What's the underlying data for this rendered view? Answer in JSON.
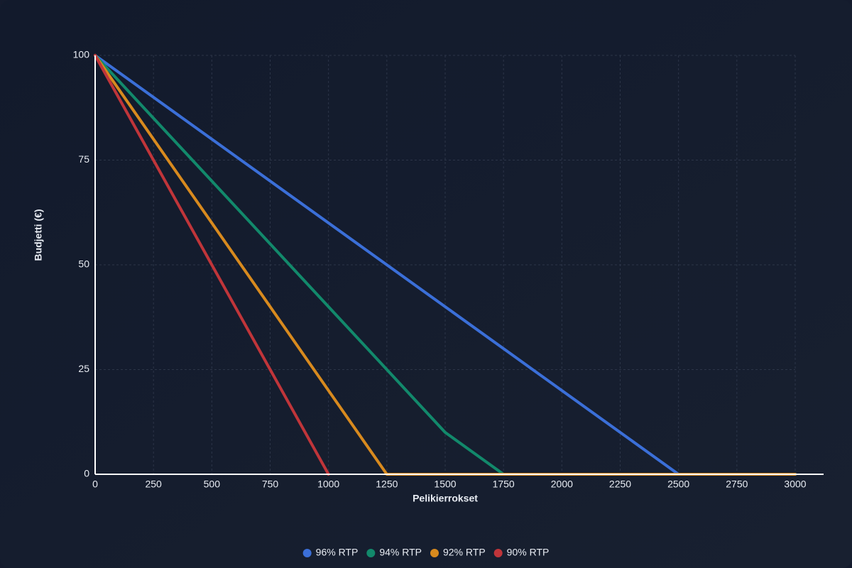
{
  "chart_data": {
    "type": "line",
    "x": [
      0,
      250,
      500,
      750,
      1000,
      1250,
      1500,
      1750,
      2000,
      2250,
      2500,
      2750,
      3000
    ],
    "series": [
      {
        "name": "96% RTP",
        "color": "#3b6fd8",
        "values": [
          100,
          90,
          80,
          70,
          60,
          50,
          40,
          30,
          20,
          10,
          0,
          0,
          0
        ]
      },
      {
        "name": "94% RTP",
        "color": "#12896b",
        "values": [
          100,
          85,
          70,
          55,
          40,
          25,
          10,
          0,
          0,
          0,
          0,
          0,
          0
        ]
      },
      {
        "name": "92% RTP",
        "color": "#d88a1e",
        "values": [
          100,
          80,
          60,
          40,
          20,
          0,
          0,
          0,
          0,
          0,
          0,
          0,
          0
        ]
      },
      {
        "name": "90% RTP",
        "color": "#c0353a",
        "values": [
          100,
          75,
          50,
          25,
          0,
          null,
          null,
          null,
          null,
          null,
          null,
          null,
          null
        ]
      }
    ],
    "xlabel": "Pelikierrokset",
    "ylabel": "Budjetti (€)",
    "xlim": [
      0,
      3000
    ],
    "xticks": [
      0,
      250,
      500,
      750,
      1000,
      1250,
      1500,
      1750,
      2000,
      2250,
      2500,
      2750,
      3000
    ],
    "ylim": [
      0,
      100
    ],
    "yticks": [
      0,
      25,
      50,
      75,
      100
    ],
    "grid": true,
    "legend": "bottom"
  }
}
